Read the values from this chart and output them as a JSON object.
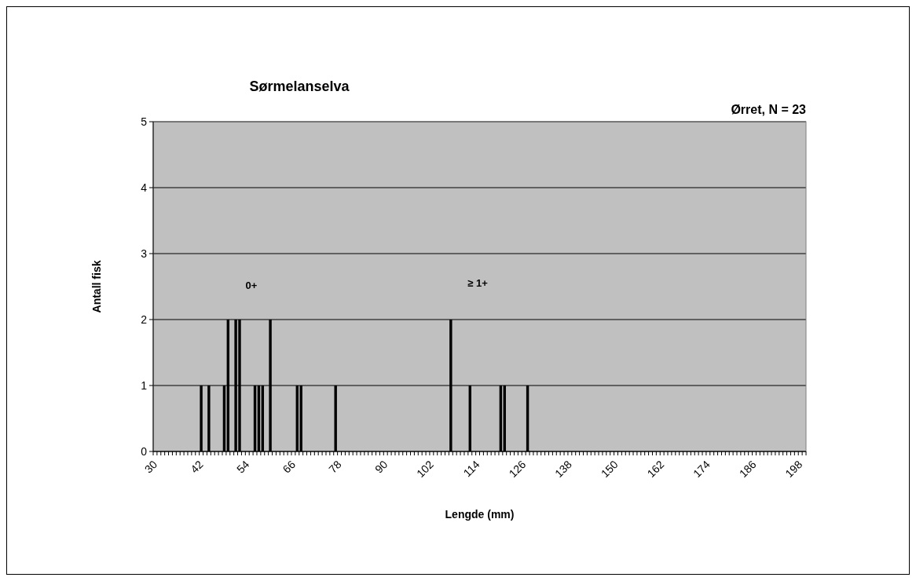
{
  "chart_data": {
    "type": "bar",
    "title": "Sørmelanselva",
    "xlabel": "Lengde (mm)",
    "ylabel": "Antall fisk",
    "annotations": [
      "Ørret, N = 23",
      "0+",
      "≥ 1+"
    ],
    "categories": [
      "30",
      null,
      null,
      null,
      null,
      null,
      null,
      null,
      null,
      null,
      null,
      null,
      "42",
      null,
      null,
      null,
      null,
      null,
      null,
      null,
      null,
      null,
      null,
      null,
      "54",
      null,
      null,
      null,
      null,
      null,
      null,
      null,
      null,
      null,
      null,
      null,
      "66",
      null,
      null,
      null,
      null,
      null,
      null,
      null,
      null,
      null,
      null,
      null,
      "78",
      null,
      null,
      null,
      null,
      null,
      null,
      null,
      null,
      null,
      null,
      null,
      "90",
      null,
      null,
      null,
      null,
      null,
      null,
      null,
      null,
      null,
      null,
      null,
      "102",
      null,
      null,
      null,
      null,
      null,
      null,
      null,
      null,
      null,
      null,
      null,
      "114",
      null,
      null,
      null,
      null,
      null,
      null,
      null,
      null,
      null,
      null,
      null,
      "126",
      null,
      null,
      null,
      null,
      null,
      null,
      null,
      null,
      null,
      null,
      null,
      "138",
      null,
      null,
      null,
      null,
      null,
      null,
      null,
      null,
      null,
      null,
      null,
      "150",
      null,
      null,
      null,
      null,
      null,
      null,
      null,
      null,
      null,
      null,
      null,
      "162",
      null,
      null,
      null,
      null,
      null,
      null,
      null,
      null,
      null,
      null,
      null,
      "174",
      null,
      null,
      null,
      null,
      null,
      null,
      null,
      null,
      null,
      null,
      null,
      "186",
      null,
      null,
      null,
      null,
      null,
      null,
      null,
      null,
      null,
      null,
      null,
      "198",
      null
    ],
    "values": [
      0,
      0,
      0,
      0,
      0,
      0,
      0,
      0,
      0,
      0,
      0,
      0,
      1,
      0,
      1,
      0,
      0,
      0,
      1,
      2,
      0,
      2,
      2,
      0,
      0,
      0,
      1,
      1,
      1,
      0,
      2,
      0,
      0,
      0,
      0,
      0,
      0,
      1,
      1,
      0,
      0,
      0,
      0,
      0,
      0,
      0,
      0,
      1,
      0,
      0,
      0,
      0,
      0,
      0,
      0,
      0,
      0,
      0,
      0,
      0,
      0,
      0,
      0,
      0,
      0,
      0,
      0,
      0,
      0,
      0,
      0,
      0,
      0,
      0,
      0,
      0,
      0,
      2,
      0,
      0,
      0,
      0,
      1,
      0,
      0,
      0,
      0,
      0,
      0,
      0,
      1,
      1,
      0,
      0,
      0,
      0,
      0,
      1,
      0,
      0,
      0,
      0,
      0,
      0,
      0,
      0,
      0,
      0,
      0,
      0,
      0,
      0,
      0,
      0,
      0,
      0,
      0,
      0,
      0,
      0,
      0,
      0,
      0,
      0,
      0,
      0,
      0,
      0,
      0,
      0,
      0,
      0,
      0,
      0,
      0,
      0,
      0,
      0,
      0,
      0,
      0,
      0,
      0,
      0,
      0,
      0,
      0,
      0,
      0,
      0,
      0,
      0,
      0,
      0,
      0,
      0,
      0,
      0,
      0,
      0,
      0,
      0,
      0,
      0,
      0,
      0,
      0,
      0,
      0,
      0
    ],
    "color": "#000000",
    "ylim": [
      0,
      5
    ],
    "yticks": [
      0,
      1,
      2,
      3,
      4,
      5
    ],
    "grid": "y"
  }
}
